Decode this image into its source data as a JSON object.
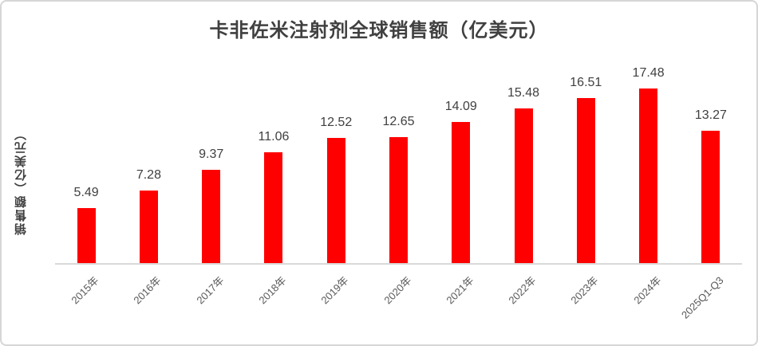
{
  "chart_data": {
    "type": "bar",
    "title": "卡非佐米注射剂全球销售额（亿美元）",
    "ylabel": "销售额（亿美元）",
    "xlabel": "",
    "categories": [
      "2015年",
      "2016年",
      "2017年",
      "2018年",
      "2019年",
      "2020年",
      "2021年",
      "2022年",
      "2023年",
      "2024年",
      "2025Q1-Q3"
    ],
    "values": [
      5.49,
      7.28,
      9.37,
      11.06,
      12.52,
      12.65,
      14.09,
      15.48,
      16.51,
      17.48,
      13.27
    ],
    "value_labels": [
      "5.49",
      "7.28",
      "9.37",
      "11.06",
      "12.52",
      "12.65",
      "14.09",
      "15.48",
      "16.51",
      "17.48",
      "13.27"
    ],
    "ylim": [
      0,
      18
    ],
    "grid": false,
    "legend": false,
    "show_value_labels": true,
    "bar_color": "#ff0000",
    "value_label_color": "#404040",
    "tick_label_color": "#595959",
    "title_color": "#404040",
    "axis_line_color": "#d9d9d9"
  }
}
